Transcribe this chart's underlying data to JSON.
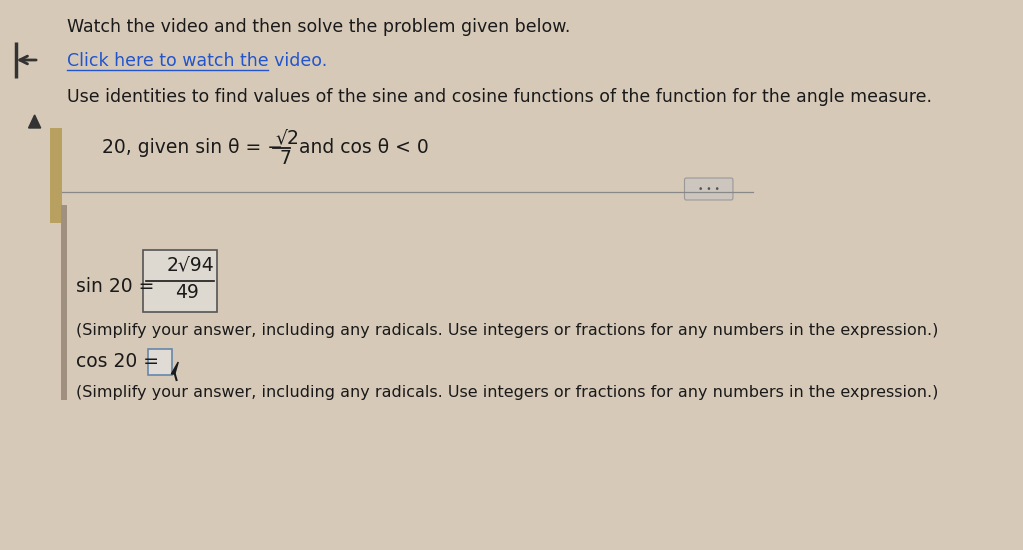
{
  "bg_color": "#d6c9b8",
  "panel_bg": "#c8baa8",
  "text_color": "#1a1a1a",
  "link_color": "#2255cc",
  "title_text": "Watch the video and then solve the problem given below.",
  "link_text": "Click here to watch the video.",
  "instruction_text": "Use identities to find values of the sine and cosine functions of the function for the angle measure.",
  "problem_prefix": "20, given sin θ = −",
  "sqrt2_num": "√2",
  "denom": "7",
  "problem_suffix": "and cos θ < 0",
  "sin_label": "sin 20 =",
  "sin_num": "2√94",
  "sin_den": "49",
  "simplify_text1": "(Simplify your answer, including any radicals. Use integers or fractions for any numbers in the expression.)",
  "cos_label": "cos 20 =",
  "simplify_text2": "(Simplify your answer, including any radicals. Use integers or fractions for any numbers in the expression.)",
  "left_bar_color": "#b8a060",
  "arrow_color": "#333333",
  "triangle_color": "#333333",
  "separator_color": "#888888",
  "box_bg": "#ddd8d0",
  "box_edge": "#555555",
  "dots_color": "#555555",
  "dots_box_bg": "#ccc6be",
  "dots_box_edge": "#999999"
}
